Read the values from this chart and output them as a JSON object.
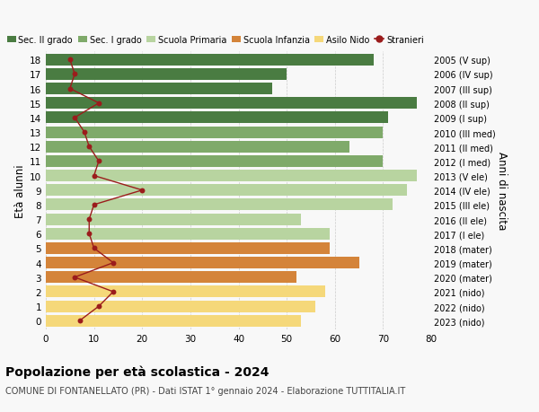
{
  "ages": [
    18,
    17,
    16,
    15,
    14,
    13,
    12,
    11,
    10,
    9,
    8,
    7,
    6,
    5,
    4,
    3,
    2,
    1,
    0
  ],
  "years": [
    "2005 (V sup)",
    "2006 (IV sup)",
    "2007 (III sup)",
    "2008 (II sup)",
    "2009 (I sup)",
    "2010 (III med)",
    "2011 (II med)",
    "2012 (I med)",
    "2013 (V ele)",
    "2014 (IV ele)",
    "2015 (III ele)",
    "2016 (II ele)",
    "2017 (I ele)",
    "2018 (mater)",
    "2019 (mater)",
    "2020 (mater)",
    "2021 (nido)",
    "2022 (nido)",
    "2023 (nido)"
  ],
  "bar_values": [
    68,
    50,
    47,
    77,
    71,
    70,
    63,
    70,
    77,
    75,
    72,
    53,
    59,
    59,
    65,
    52,
    58,
    56,
    53
  ],
  "bar_colors": [
    "#4a7c42",
    "#4a7c42",
    "#4a7c42",
    "#4a7c42",
    "#4a7c42",
    "#7faa6a",
    "#7faa6a",
    "#7faa6a",
    "#b8d4a0",
    "#b8d4a0",
    "#b8d4a0",
    "#b8d4a0",
    "#b8d4a0",
    "#d4843a",
    "#d4843a",
    "#d4843a",
    "#f5d87a",
    "#f5d87a",
    "#f5d87a"
  ],
  "stranieri_values": [
    5,
    6,
    5,
    11,
    6,
    8,
    9,
    11,
    10,
    20,
    10,
    9,
    9,
    10,
    14,
    6,
    14,
    11,
    7
  ],
  "stranieri_color": "#9b1c1c",
  "legend_labels": [
    "Sec. II grado",
    "Sec. I grado",
    "Scuola Primaria",
    "Scuola Infanzia",
    "Asilo Nido",
    "Stranieri"
  ],
  "legend_colors": [
    "#4a7c42",
    "#7faa6a",
    "#b8d4a0",
    "#d4843a",
    "#f5d87a",
    "#9b1c1c"
  ],
  "title": "Popolazione per età scolastica - 2024",
  "subtitle": "COMUNE DI FONTANELLATO (PR) - Dati ISTAT 1° gennaio 2024 - Elaborazione TUTTITALIA.IT",
  "ylabel_left": "Età alunni",
  "ylabel_right": "Anni di nascita",
  "xlim": [
    0,
    80
  ],
  "xticks": [
    0,
    10,
    20,
    30,
    40,
    50,
    60,
    70,
    80
  ],
  "bg_color": "#f8f8f8",
  "bar_height": 0.8
}
